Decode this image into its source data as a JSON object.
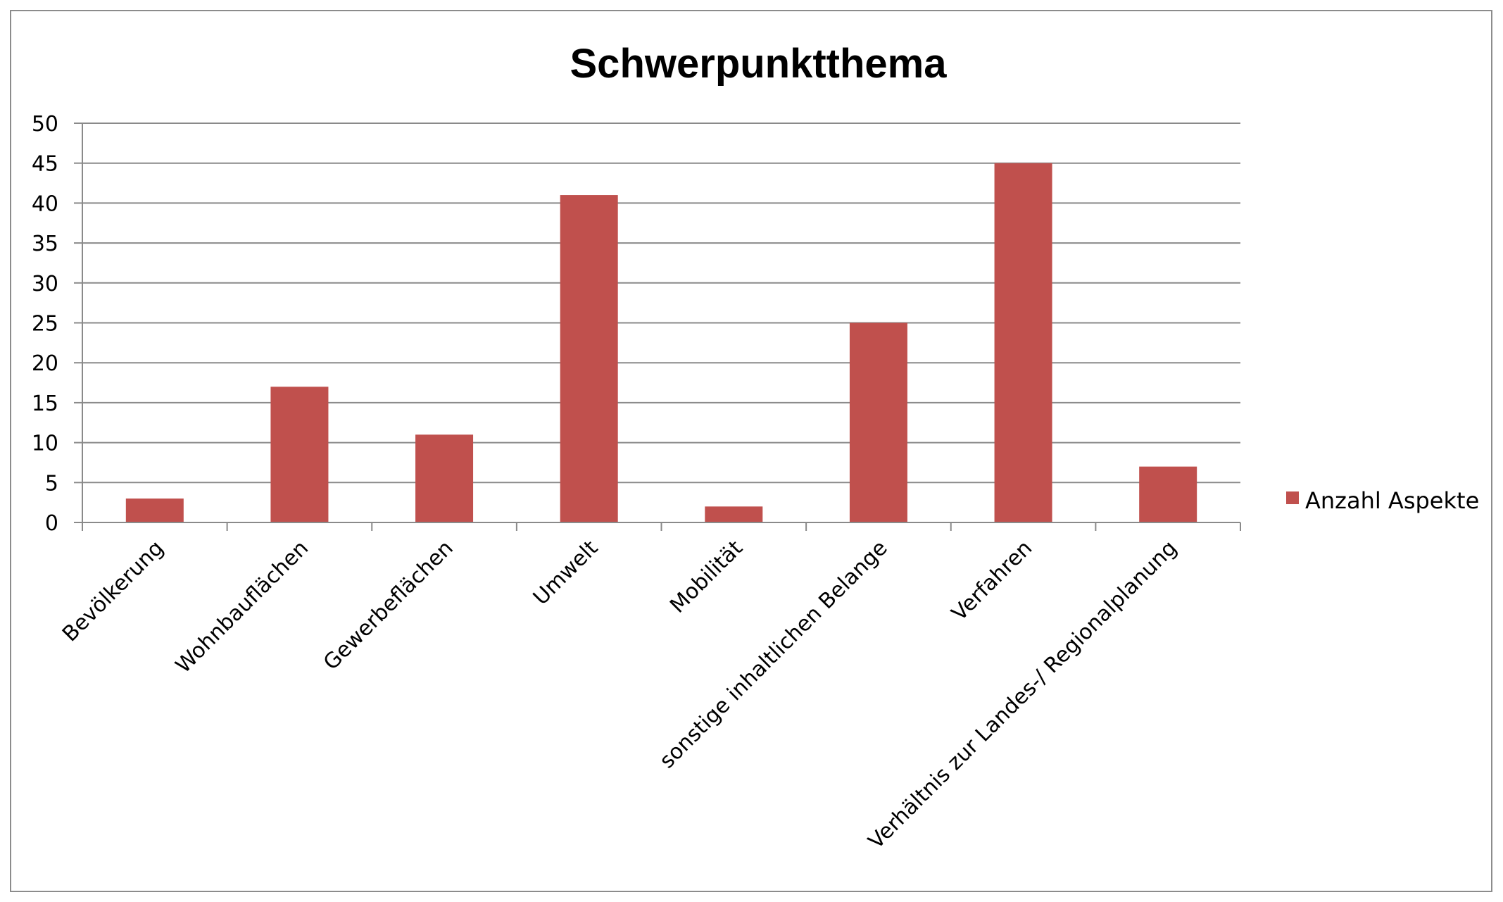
{
  "chart_data": {
    "type": "bar",
    "title": "Schwerpunktthema",
    "categories": [
      "Bevölkerung",
      "Wohnbauflächen",
      "Gewerbeflächen",
      "Umwelt",
      "Mobilität",
      "sonstige inhaltlichen Belange",
      "Verfahren",
      "Verhältnis zur Landes-/ Regionalplanung"
    ],
    "series": [
      {
        "name": "Anzahl Aspekte",
        "values": [
          3,
          17,
          11,
          41,
          2,
          25,
          45,
          7
        ],
        "color": "#c0504d"
      }
    ],
    "ylim": [
      0,
      50
    ],
    "yticks": [
      "0",
      "5",
      "10",
      "15",
      "20",
      "25",
      "30",
      "35",
      "40",
      "45",
      "50"
    ],
    "grid": true,
    "legend": "right"
  }
}
